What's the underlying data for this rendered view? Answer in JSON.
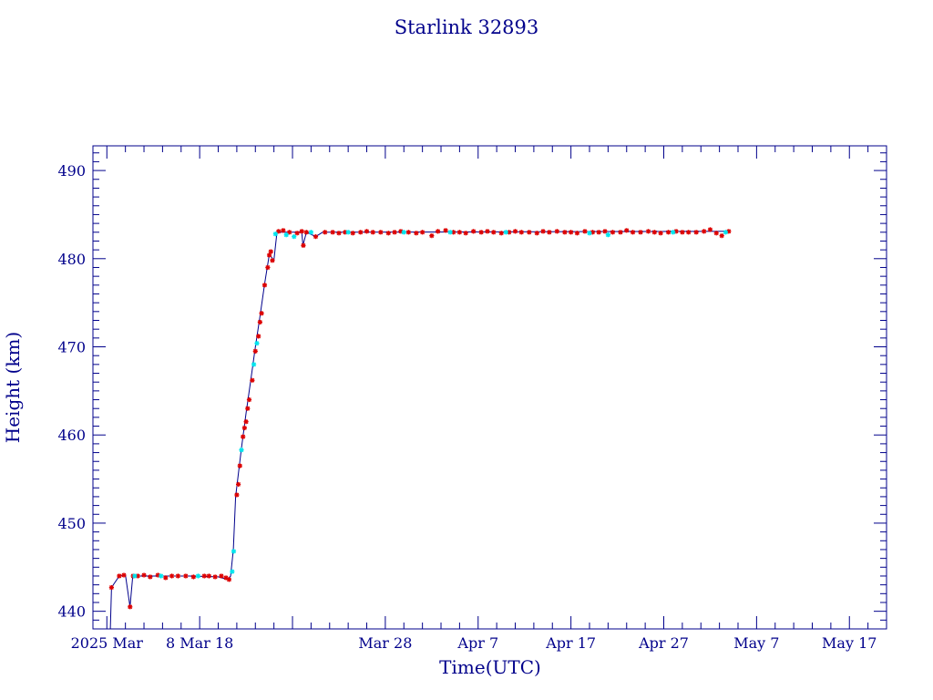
{
  "chart_data": {
    "type": "scatter",
    "title": "Starlink 32893",
    "xlabel": "Time(UTC)",
    "ylabel": "Height (km)",
    "ylim": [
      438,
      492.8
    ],
    "xlim": [
      "2025-02-24T12:00",
      "2025-05-21T00:00"
    ],
    "grid": false,
    "x_ticks": [
      {
        "date": "2025-02-26",
        "label": "2025 Mar"
      },
      {
        "date": "2025-03-08",
        "label": "8 Mar 18"
      },
      {
        "date": "2025-03-28",
        "label": "Mar 28"
      },
      {
        "date": "2025-04-07",
        "label": "Apr  7"
      },
      {
        "date": "2025-04-17",
        "label": "Apr 17"
      },
      {
        "date": "2025-04-27",
        "label": "Apr 27"
      },
      {
        "date": "2025-05-07",
        "label": "May  7"
      },
      {
        "date": "2025-05-17",
        "label": "May 17"
      }
    ],
    "y_ticks": [
      440,
      450,
      460,
      470,
      480,
      490
    ],
    "colors": {
      "frame": "#00008b",
      "line": "#00008b",
      "series_a": "#dd0000",
      "series_b": "#00e5ee"
    },
    "series": [
      {
        "color": "#00008b",
        "style": "line",
        "points": [
          [
            "2025-02-26T09:00",
            438.0
          ],
          [
            "2025-02-26T12:00",
            442.7
          ],
          [
            "2025-02-27T08:00",
            444.0
          ],
          [
            "2025-02-28T00:00",
            444.1
          ],
          [
            "2025-02-28T12:00",
            440.5
          ],
          [
            "2025-02-28T19:00",
            444.0
          ],
          [
            "2025-03-03T00:00",
            444.0
          ],
          [
            "2025-03-07T00:00",
            444.0
          ],
          [
            "2025-03-10T00:00",
            443.9
          ],
          [
            "2025-03-11T00:00",
            443.6
          ],
          [
            "2025-03-11T08:00",
            444.0
          ],
          [
            "2025-03-11T15:00",
            447.0
          ],
          [
            "2025-03-11T21:00",
            453.0
          ],
          [
            "2025-03-12T12:00",
            458.5
          ],
          [
            "2025-03-13T00:00",
            462.5
          ],
          [
            "2025-03-13T12:00",
            466.2
          ],
          [
            "2025-03-14T00:00",
            470.0
          ],
          [
            "2025-03-14T12:00",
            473.5
          ],
          [
            "2025-03-15T00:00",
            477.2
          ],
          [
            "2025-03-15T12:00",
            480.5
          ],
          [
            "2025-03-16T00:00",
            479.8
          ],
          [
            "2025-03-16T08:00",
            483.0
          ],
          [
            "2025-03-19T00:00",
            483.0
          ],
          [
            "2025-03-19T03:00",
            481.5
          ],
          [
            "2025-03-19T12:00",
            483.0
          ],
          [
            "2025-03-20T12:00",
            482.5
          ],
          [
            "2025-03-21T06:00",
            483.0
          ],
          [
            "2025-05-04T00:00",
            483.1
          ]
        ]
      },
      {
        "color": "#dd0000",
        "style": "asterisk",
        "points": [
          [
            "2025-02-26T12:00",
            442.7
          ],
          [
            "2025-02-27T08:00",
            444.0
          ],
          [
            "2025-02-27T20:00",
            444.1
          ],
          [
            "2025-02-28T12:00",
            440.5
          ],
          [
            "2025-02-28T20:00",
            444.0
          ],
          [
            "2025-03-01T08:00",
            444.0
          ],
          [
            "2025-03-02T00:00",
            444.1
          ],
          [
            "2025-03-02T16:00",
            443.9
          ],
          [
            "2025-03-03T12:00",
            444.1
          ],
          [
            "2025-03-04T08:00",
            443.8
          ],
          [
            "2025-03-05T00:00",
            444.0
          ],
          [
            "2025-03-05T16:00",
            444.0
          ],
          [
            "2025-03-06T12:00",
            444.0
          ],
          [
            "2025-03-07T08:00",
            443.9
          ],
          [
            "2025-03-08T12:00",
            444.0
          ],
          [
            "2025-03-09T00:00",
            444.0
          ],
          [
            "2025-03-09T16:00",
            443.9
          ],
          [
            "2025-03-10T08:00",
            444.0
          ],
          [
            "2025-03-10T20:00",
            443.8
          ],
          [
            "2025-03-11T04:00",
            443.6
          ],
          [
            "2025-03-12T00:00",
            453.2
          ],
          [
            "2025-03-12T04:00",
            454.4
          ],
          [
            "2025-03-12T08:00",
            456.5
          ],
          [
            "2025-03-12T16:00",
            459.8
          ],
          [
            "2025-03-12T20:00",
            460.8
          ],
          [
            "2025-03-13T00:00",
            461.5
          ],
          [
            "2025-03-13T04:00",
            463.0
          ],
          [
            "2025-03-13T08:00",
            464.0
          ],
          [
            "2025-03-13T16:00",
            466.2
          ],
          [
            "2025-03-14T00:00",
            469.5
          ],
          [
            "2025-03-14T08:00",
            471.2
          ],
          [
            "2025-03-14T12:00",
            472.8
          ],
          [
            "2025-03-14T16:00",
            473.8
          ],
          [
            "2025-03-15T00:00",
            477.0
          ],
          [
            "2025-03-15T08:00",
            479.0
          ],
          [
            "2025-03-15T12:00",
            480.4
          ],
          [
            "2025-03-15T16:00",
            480.8
          ],
          [
            "2025-03-15T20:00",
            479.8
          ],
          [
            "2025-03-16T12:00",
            483.1
          ],
          [
            "2025-03-17T00:00",
            483.2
          ],
          [
            "2025-03-17T16:00",
            483.0
          ],
          [
            "2025-03-18T12:00",
            482.9
          ],
          [
            "2025-03-19T00:00",
            483.1
          ],
          [
            "2025-03-19T04:00",
            481.5
          ],
          [
            "2025-03-19T12:00",
            483.0
          ],
          [
            "2025-03-20T12:00",
            482.5
          ],
          [
            "2025-03-21T12:00",
            483.0
          ],
          [
            "2025-03-22T08:00",
            483.0
          ],
          [
            "2025-03-23T00:00",
            482.9
          ],
          [
            "2025-03-23T16:00",
            483.0
          ],
          [
            "2025-03-24T12:00",
            482.9
          ],
          [
            "2025-03-25T08:00",
            483.0
          ],
          [
            "2025-03-26T00:00",
            483.1
          ],
          [
            "2025-03-26T16:00",
            483.0
          ],
          [
            "2025-03-27T12:00",
            483.0
          ],
          [
            "2025-03-28T08:00",
            482.9
          ],
          [
            "2025-03-29T00:00",
            483.0
          ],
          [
            "2025-03-29T16:00",
            483.1
          ],
          [
            "2025-03-30T12:00",
            483.0
          ],
          [
            "2025-03-31T08:00",
            482.9
          ],
          [
            "2025-04-01T00:00",
            483.0
          ],
          [
            "2025-04-02T00:00",
            482.6
          ],
          [
            "2025-04-02T16:00",
            483.1
          ],
          [
            "2025-04-03T12:00",
            483.2
          ],
          [
            "2025-04-04T08:00",
            483.0
          ],
          [
            "2025-04-05T00:00",
            483.0
          ],
          [
            "2025-04-05T16:00",
            482.9
          ],
          [
            "2025-04-06T12:00",
            483.1
          ],
          [
            "2025-04-07T08:00",
            483.0
          ],
          [
            "2025-04-08T00:00",
            483.1
          ],
          [
            "2025-04-08T16:00",
            483.0
          ],
          [
            "2025-04-09T12:00",
            482.9
          ],
          [
            "2025-04-10T08:00",
            483.0
          ],
          [
            "2025-04-11T00:00",
            483.1
          ],
          [
            "2025-04-11T16:00",
            483.0
          ],
          [
            "2025-04-12T12:00",
            483.0
          ],
          [
            "2025-04-13T08:00",
            482.9
          ],
          [
            "2025-04-14T00:00",
            483.1
          ],
          [
            "2025-04-14T16:00",
            483.0
          ],
          [
            "2025-04-15T12:00",
            483.1
          ],
          [
            "2025-04-16T08:00",
            483.0
          ],
          [
            "2025-04-17T00:00",
            483.0
          ],
          [
            "2025-04-17T16:00",
            482.9
          ],
          [
            "2025-04-18T12:00",
            483.1
          ],
          [
            "2025-04-19T08:00",
            483.0
          ],
          [
            "2025-04-20T00:00",
            483.0
          ],
          [
            "2025-04-20T16:00",
            483.1
          ],
          [
            "2025-04-21T12:00",
            483.0
          ],
          [
            "2025-04-22T08:00",
            483.0
          ],
          [
            "2025-04-23T00:00",
            483.2
          ],
          [
            "2025-04-23T16:00",
            483.0
          ],
          [
            "2025-04-24T12:00",
            483.0
          ],
          [
            "2025-04-25T08:00",
            483.1
          ],
          [
            "2025-04-26T00:00",
            483.0
          ],
          [
            "2025-04-26T16:00",
            482.9
          ],
          [
            "2025-04-27T12:00",
            483.0
          ],
          [
            "2025-04-28T08:00",
            483.1
          ],
          [
            "2025-04-29T00:00",
            483.0
          ],
          [
            "2025-04-29T16:00",
            483.0
          ],
          [
            "2025-04-30T12:00",
            483.0
          ],
          [
            "2025-05-01T08:00",
            483.1
          ],
          [
            "2025-05-02T00:00",
            483.3
          ],
          [
            "2025-05-02T16:00",
            482.9
          ],
          [
            "2025-05-03T06:00",
            482.6
          ],
          [
            "2025-05-04T00:00",
            483.1
          ]
        ]
      },
      {
        "color": "#00e5ee",
        "style": "asterisk",
        "points": [
          [
            "2025-03-01T00:00",
            444.0
          ],
          [
            "2025-03-03T20:00",
            444.0
          ],
          [
            "2025-03-07T20:00",
            444.0
          ],
          [
            "2025-03-11T12:00",
            444.5
          ],
          [
            "2025-03-11T16:00",
            446.8
          ],
          [
            "2025-03-12T12:00",
            458.3
          ],
          [
            "2025-03-13T20:00",
            468.0
          ],
          [
            "2025-03-14T04:00",
            470.4
          ],
          [
            "2025-03-16T04:00",
            482.8
          ],
          [
            "2025-03-17T08:00",
            482.7
          ],
          [
            "2025-03-18T04:00",
            482.5
          ],
          [
            "2025-03-20T00:00",
            483.0
          ],
          [
            "2025-03-24T00:00",
            483.0
          ],
          [
            "2025-03-30T00:00",
            483.0
          ],
          [
            "2025-04-04T00:00",
            483.0
          ],
          [
            "2025-04-10T00:00",
            483.0
          ],
          [
            "2025-04-19T00:00",
            482.9
          ],
          [
            "2025-04-21T00:00",
            482.7
          ],
          [
            "2025-04-28T00:00",
            483.0
          ],
          [
            "2025-05-03T16:00",
            483.0
          ]
        ]
      }
    ]
  }
}
